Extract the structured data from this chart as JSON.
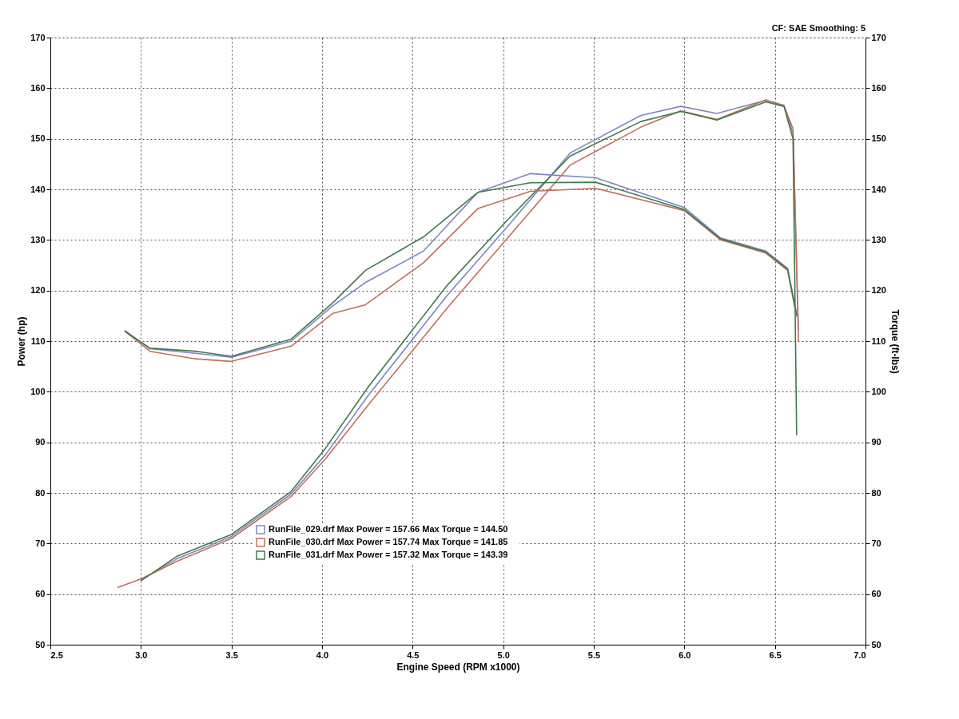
{
  "chart_data": {
    "type": "line",
    "xlabel": "Engine Speed (RPM x1000)",
    "ylabel": "Power (hp)",
    "y2label": "Torque (ft-lbs)",
    "annotations": [
      "CF: SAE  Smoothing: 5"
    ],
    "xlim": [
      2.5,
      7.0
    ],
    "xticks": [
      2.5,
      {
        "value": 3,
        "label": "3.0"
      },
      3.5,
      {
        "value": 4,
        "label": "4.0"
      },
      4.5,
      {
        "value": 5,
        "label": "5.0"
      },
      5.5,
      {
        "value": 6,
        "label": "6.0"
      },
      6.5,
      {
        "value": 7,
        "label": "7.0"
      }
    ],
    "ylim": [
      50,
      170
    ],
    "yticks": [
      50,
      60,
      70,
      80,
      90,
      100,
      110,
      120,
      130,
      140,
      150,
      160,
      170
    ],
    "y2lim": [
      50,
      170
    ],
    "y2ticks": [
      50,
      60,
      70,
      80,
      90,
      100,
      110,
      120,
      130,
      140,
      150,
      160,
      170
    ],
    "grid": true,
    "legend": "bottom",
    "line_style": "solid",
    "marker": "none",
    "series": [
      {
        "name": "RunFile_029.drf Max Power = 157.66     Max Torque = 144.50",
        "color": "#7f86c0",
        "x": [
          3.0,
          3.2,
          3.5,
          3.83,
          4.02,
          4.26,
          4.69,
          5.02,
          5.37,
          5.76,
          5.98,
          6.18,
          6.45,
          6.55,
          6.6,
          6.63
        ],
        "values": [
          62.8,
          67.0,
          71.4,
          79.8,
          87.6,
          99.5,
          119.0,
          132.5,
          147.2,
          154.6,
          156.4,
          155.0,
          157.6,
          156.6,
          151,
          112
        ]
      },
      {
        "name": "RunFile_030.drf Max Power = 157.74     Max Torque = 141.85",
        "color": "#c0705a",
        "x": [
          2.87,
          3.0,
          3.2,
          3.5,
          3.83,
          4.02,
          4.26,
          4.69,
          5.02,
          5.37,
          5.76,
          5.98,
          6.18,
          6.45,
          6.55,
          6.6,
          6.63
        ],
        "values": [
          61.3,
          63.0,
          66.5,
          71.0,
          79.3,
          86.8,
          97.6,
          116.5,
          130.2,
          144.8,
          152.3,
          155.5,
          153.8,
          157.7,
          156.5,
          152,
          110
        ]
      },
      {
        "name": "RunFile_031.drf Max Power = 157.32     Max Torque = 143.39",
        "color": "#3f7a4a",
        "x": [
          3.0,
          3.2,
          3.5,
          3.83,
          4.02,
          4.26,
          4.69,
          5.02,
          5.37,
          5.76,
          5.98,
          6.18,
          6.45,
          6.55,
          6.6,
          6.62
        ],
        "values": [
          62.6,
          67.5,
          71.8,
          80.3,
          88.9,
          101.2,
          121.0,
          133.8,
          146.6,
          153.4,
          155.4,
          153.7,
          157.3,
          156.4,
          150,
          91.4
        ]
      },
      {
        "color": "#7f86c0",
        "axis": "y2",
        "x": [
          2.91,
          3.05,
          3.3,
          3.5,
          3.83,
          4.06,
          4.24,
          4.56,
          4.86,
          5.15,
          5.51,
          6.0,
          6.2,
          6.45,
          6.57,
          6.62
        ],
        "values": [
          112.1,
          108.5,
          107.6,
          106.8,
          110.0,
          117.0,
          121.6,
          127.8,
          139.4,
          143.1,
          142.3,
          136.4,
          130.4,
          127.8,
          124.4,
          115.3
        ]
      },
      {
        "color": "#c0705a",
        "axis": "y2",
        "x": [
          2.91,
          3.05,
          3.3,
          3.5,
          3.83,
          4.06,
          4.24,
          4.56,
          4.86,
          5.15,
          5.51,
          6.0,
          6.2,
          6.45,
          6.57,
          6.62
        ],
        "values": [
          112.0,
          108.0,
          106.5,
          106.0,
          109.0,
          115.5,
          117.2,
          125.5,
          136.2,
          139.6,
          140.2,
          135.8,
          130.0,
          127.4,
          124.0,
          114.8
        ]
      },
      {
        "color": "#3f7a4a",
        "axis": "y2",
        "x": [
          2.91,
          3.05,
          3.3,
          3.5,
          3.83,
          4.06,
          4.24,
          4.56,
          4.86,
          5.15,
          5.51,
          6.0,
          6.2,
          6.45,
          6.57,
          6.62
        ],
        "values": [
          112.0,
          108.6,
          108.0,
          107.0,
          110.4,
          117.6,
          124.0,
          130.6,
          139.4,
          141.3,
          141.4,
          136.0,
          130.2,
          127.6,
          124.2,
          115.1
        ]
      }
    ]
  }
}
